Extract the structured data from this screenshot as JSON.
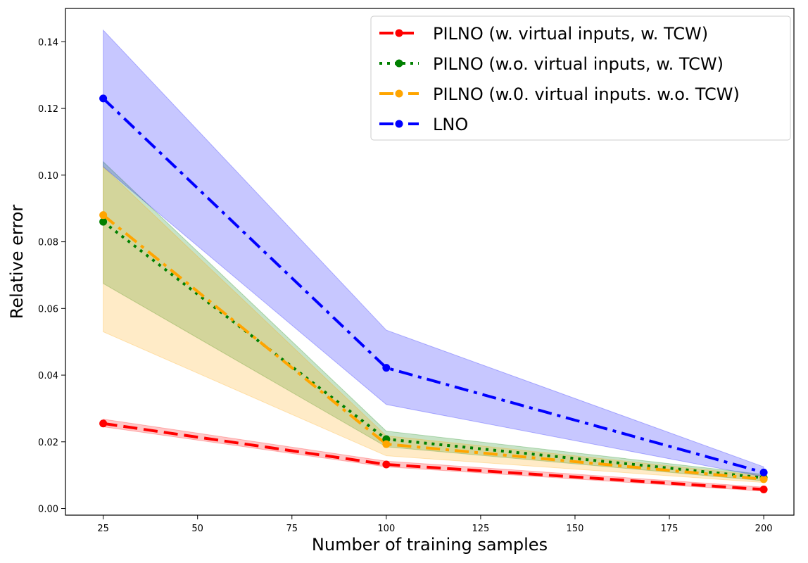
{
  "chart_data": {
    "type": "line",
    "title": "",
    "xlabel": "Number of training samples",
    "ylabel": "Relative error",
    "xlim": [
      15,
      208
    ],
    "ylim": [
      -0.002,
      0.15
    ],
    "xticks": [
      25,
      50,
      75,
      100,
      125,
      150,
      175,
      200
    ],
    "xtick_labels": [
      "25",
      "50",
      "75",
      "100",
      "125",
      "150",
      "175",
      "200"
    ],
    "yticks": [
      0.0,
      0.02,
      0.04,
      0.06,
      0.08,
      0.1,
      0.12,
      0.14
    ],
    "ytick_labels": [
      "0.00",
      "0.02",
      "0.04",
      "0.06",
      "0.08",
      "0.10",
      "0.12",
      "0.14"
    ],
    "grid": false,
    "legend_position": "top-right",
    "x": [
      25,
      100,
      200
    ],
    "series": [
      {
        "name": "PILNO (w. virtual inputs, w. TCW)",
        "color": "#ff0000",
        "linestyle": "dashed",
        "values": [
          0.0255,
          0.0132,
          0.0057
        ],
        "lower": [
          0.0245,
          0.0125,
          0.0052
        ],
        "upper": [
          0.0268,
          0.0142,
          0.0064
        ]
      },
      {
        "name": "PILNO (w.o. virtual inputs, w. TCW)",
        "color": "#008000",
        "linestyle": "dotted",
        "values": [
          0.086,
          0.0208,
          0.0092
        ],
        "lower": [
          0.0675,
          0.0185,
          0.0083
        ],
        "upper": [
          0.104,
          0.0232,
          0.0102
        ]
      },
      {
        "name": "PILNO (w.0. virtual inputs. w.o. TCW)",
        "color": "#ffa500",
        "linestyle": "dashdot",
        "values": [
          0.088,
          0.0193,
          0.0088
        ],
        "lower": [
          0.053,
          0.0158,
          0.0078
        ],
        "upper": [
          0.1025,
          0.0218,
          0.0098
        ]
      },
      {
        "name": "LNO",
        "color": "#0000ff",
        "linestyle": "dashdot",
        "values": [
          0.123,
          0.0422,
          0.0108
        ],
        "lower": [
          0.1025,
          0.0312,
          0.0095
        ],
        "upper": [
          0.1435,
          0.0535,
          0.0125
        ]
      }
    ]
  }
}
